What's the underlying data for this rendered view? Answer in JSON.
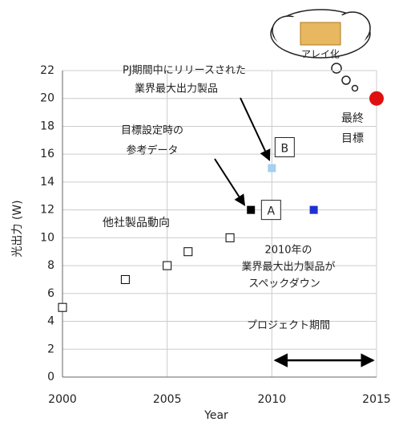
{
  "chart_data": {
    "type": "scatter",
    "xlabel": "Year",
    "ylabel": "光出力 (W)",
    "xlim": [
      2000,
      2015
    ],
    "xticks": [
      2000,
      2005,
      2010,
      2015
    ],
    "ylim": [
      0,
      22
    ],
    "yticks": [
      0,
      2,
      4,
      6,
      8,
      10,
      12,
      14,
      16,
      18,
      20,
      22
    ],
    "grid": true,
    "series": [
      {
        "marker": "open-square",
        "color": "#000000",
        "x": [
          2000,
          2003,
          2005,
          2006,
          2008
        ],
        "values": [
          5,
          7,
          8,
          9,
          10
        ]
      },
      {
        "marker": "square",
        "color": "#000000",
        "x": [
          2009
        ],
        "values": [
          12
        ]
      },
      {
        "marker": "square",
        "color": "#a6cff0",
        "x": [
          2010
        ],
        "values": [
          15
        ]
      },
      {
        "marker": "square",
        "color": "#1f2fd0",
        "x": [
          2012
        ],
        "values": [
          12
        ]
      },
      {
        "marker": "circle",
        "color": "#e01010",
        "x": [
          2015
        ],
        "values": [
          20
        ]
      }
    ],
    "annotations": [
      "PJ期間中にリリースされた",
      "業界最大出力製品",
      "目標設定時の",
      "参考データ",
      "他社製品動向",
      "2010年の",
      "業界最大出力製品が",
      "スペックダウン",
      "プロジェクト期間",
      "最終",
      "目標",
      "A",
      "B",
      "アレイ化"
    ]
  }
}
